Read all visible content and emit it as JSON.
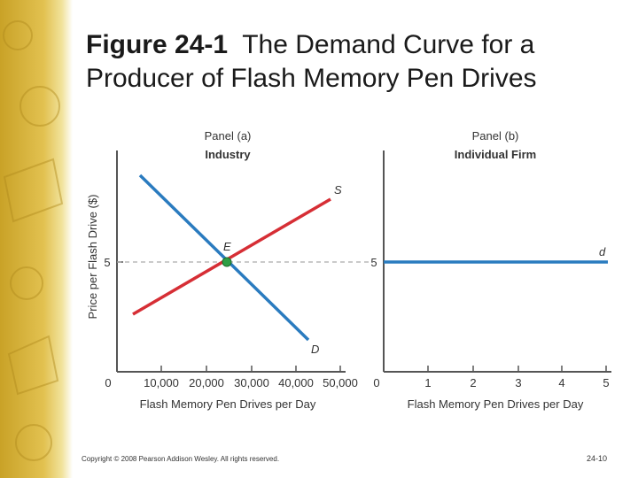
{
  "title": {
    "figure_label": "Figure 24-1",
    "line1_rest": "The Demand Curve for a",
    "line2": "Producer of Flash Memory Pen Drives"
  },
  "panel_a": {
    "panel_label": "Panel (a)",
    "panel_title": "Industry",
    "y_axis_label": "Price per Flash Drive ($)",
    "x_axis_label": "Flash Memory Pen Drives per Day",
    "origin_label": "0",
    "x_ticks": [
      "10,000",
      "20,000",
      "30,000",
      "40,000",
      "50,000"
    ],
    "y_tick": "5",
    "supply_label": "S",
    "demand_label": "D",
    "equilibrium_label": "E"
  },
  "panel_b": {
    "panel_label": "Panel (b)",
    "panel_title": "Individual Firm",
    "x_axis_label": "Flash Memory Pen Drives per Day",
    "origin_label": "0",
    "x_ticks": [
      "1",
      "2",
      "3",
      "4",
      "5"
    ],
    "y_tick": "5",
    "demand_label": "d"
  },
  "colors": {
    "supply": "#d62e35",
    "demand": "#2a7bbf",
    "equilibrium_point": "#2e9e44",
    "axis": "#555555",
    "dashed": "#aaaaaa"
  },
  "footer": {
    "copyright": "Copyright © 2008 Pearson Addison Wesley. All rights reserved.",
    "page_number": "24-10"
  }
}
